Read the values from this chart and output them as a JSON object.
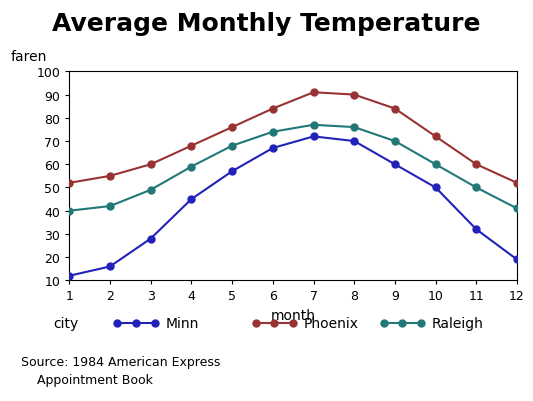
{
  "title": "Average Monthly Temperature",
  "xlabel": "month",
  "ylabel": "faren",
  "months": [
    1,
    2,
    3,
    4,
    5,
    6,
    7,
    8,
    9,
    10,
    11,
    12
  ],
  "minn": [
    12,
    16,
    28,
    45,
    57,
    67,
    72,
    70,
    60,
    50,
    32,
    19
  ],
  "phoenix": [
    52,
    55,
    60,
    68,
    76,
    84,
    91,
    90,
    84,
    72,
    60,
    52
  ],
  "raleigh": [
    40,
    42,
    49,
    59,
    68,
    74,
    77,
    76,
    70,
    60,
    50,
    41
  ],
  "minn_color": "#2222bb",
  "phoenix_color": "#993333",
  "raleigh_color": "#227777",
  "bg_color": "#ffffff",
  "plot_bg": "#ffffff",
  "ylim": [
    10,
    100
  ],
  "yticks": [
    10,
    20,
    30,
    40,
    50,
    60,
    70,
    80,
    90,
    100
  ],
  "xticks": [
    1,
    2,
    3,
    4,
    5,
    6,
    7,
    8,
    9,
    10,
    11,
    12
  ],
  "source_text": "Source: 1984 American Express\n    Appointment Book",
  "legend_label_city": "city",
  "legend_minn": "Minn",
  "legend_phoenix": "Phoenix",
  "legend_raleigh": "Raleigh",
  "title_fontsize": 18,
  "axis_fontsize": 10,
  "tick_fontsize": 9,
  "legend_fontsize": 10,
  "source_fontsize": 9,
  "marker": "o",
  "markersize": 5,
  "linewidth": 1.5
}
